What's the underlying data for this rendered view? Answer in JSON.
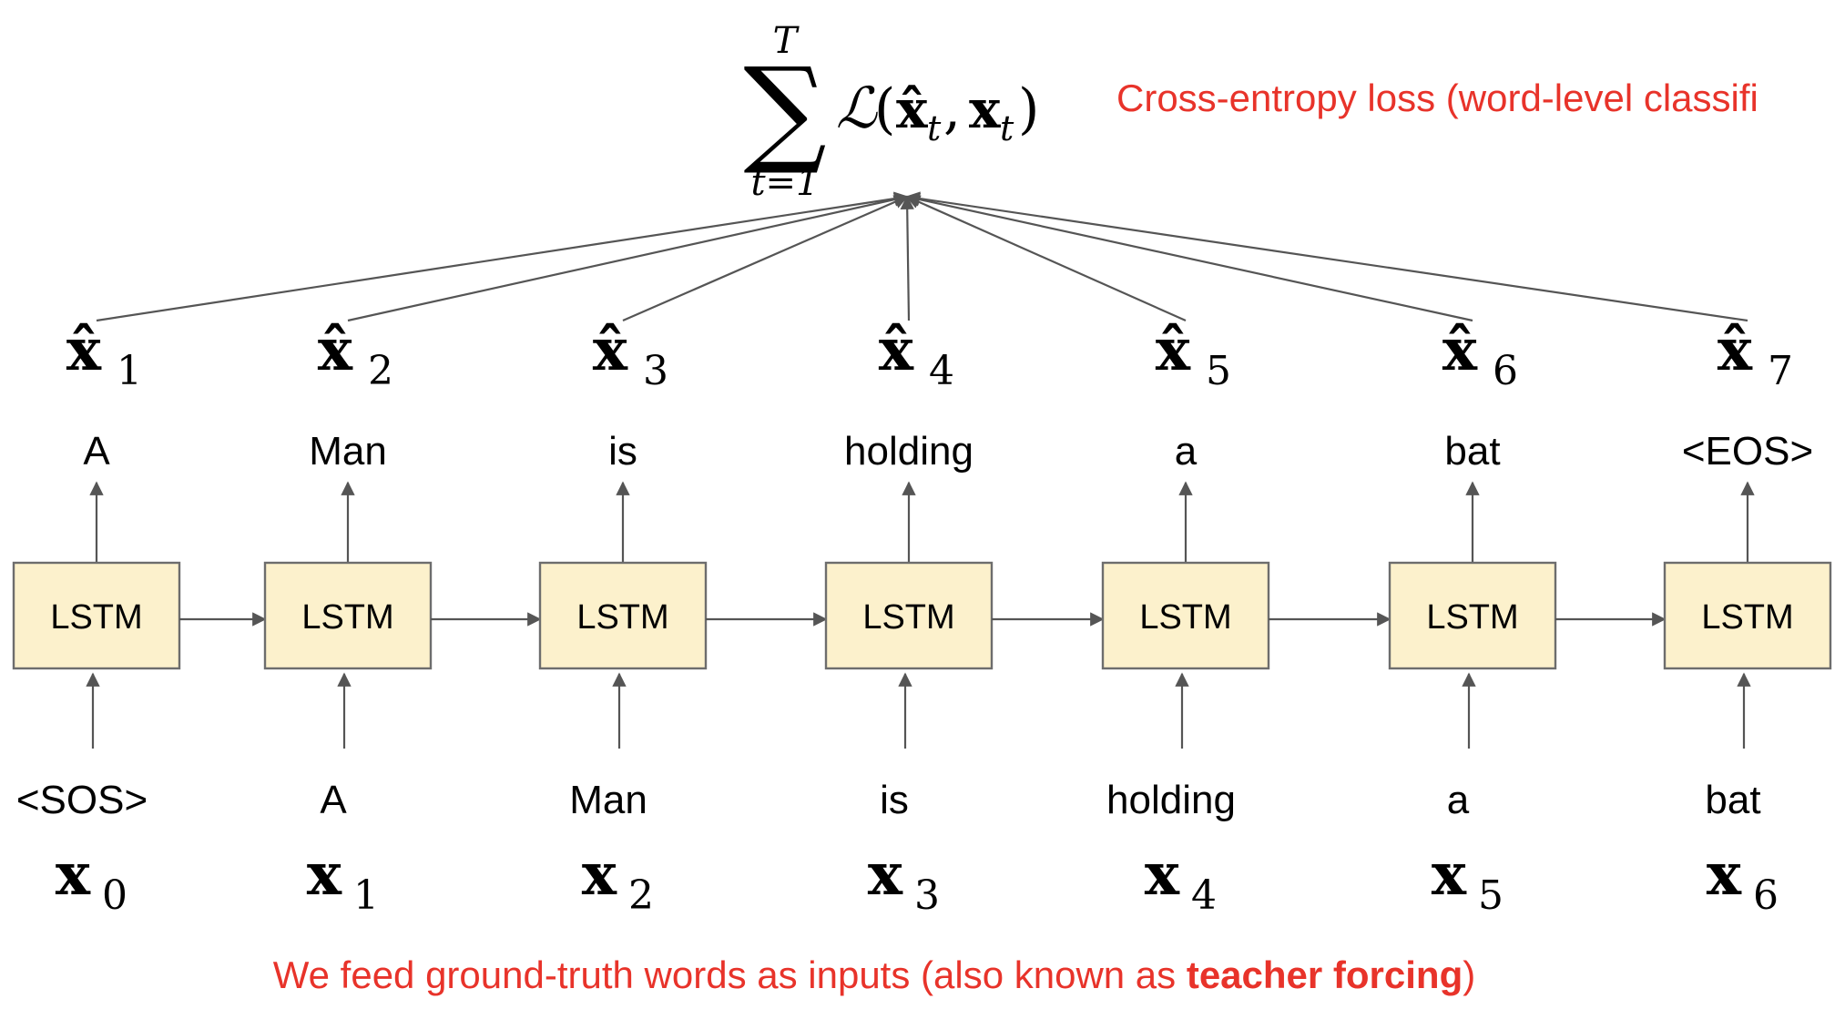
{
  "loss": {
    "sum_upper": "T",
    "sum_lower": "t=1",
    "sum_symbol": "∑",
    "loss_symbol": "ℒ",
    "expression_open": "(",
    "expression_var_hat": "x̂",
    "expression_sub_t": "t",
    "expression_comma": ",",
    "expression_var": "x",
    "expression_close": ")"
  },
  "loss_annotation": "Cross-entropy loss (word-level classifi",
  "block_label": "LSTM",
  "steps": [
    {
      "output_var": "x̂",
      "output_sub": "1",
      "output_word": "A",
      "input_word": "<SOS>",
      "input_var": "x",
      "input_sub": "0"
    },
    {
      "output_var": "x̂",
      "output_sub": "2",
      "output_word": "Man",
      "input_word": "A",
      "input_var": "x",
      "input_sub": "1"
    },
    {
      "output_var": "x̂",
      "output_sub": "3",
      "output_word": "is",
      "input_word": "Man",
      "input_var": "x",
      "input_sub": "2"
    },
    {
      "output_var": "x̂",
      "output_sub": "4",
      "output_word": "holding",
      "input_word": "is",
      "input_var": "x",
      "input_sub": "3"
    },
    {
      "output_var": "x̂",
      "output_sub": "5",
      "output_word": "a",
      "input_word": "holding",
      "input_var": "x",
      "input_sub": "4"
    },
    {
      "output_var": "x̂",
      "output_sub": "6",
      "output_word": "bat",
      "input_word": "a",
      "input_var": "x",
      "input_sub": "5"
    },
    {
      "output_var": "x̂",
      "output_sub": "7",
      "output_word": "<EOS>",
      "input_word": "bat",
      "input_var": "x",
      "input_sub": "6"
    }
  ],
  "bottom_note": {
    "prefix": "We feed ground-truth words as inputs (also known as ",
    "emphasis": "teacher forcing",
    "suffix": ")"
  },
  "colors": {
    "annotation": "#e8332a",
    "lstm_fill": "#fcf1cc",
    "lstm_border": "#6d6d6d",
    "arrow": "#555555"
  }
}
